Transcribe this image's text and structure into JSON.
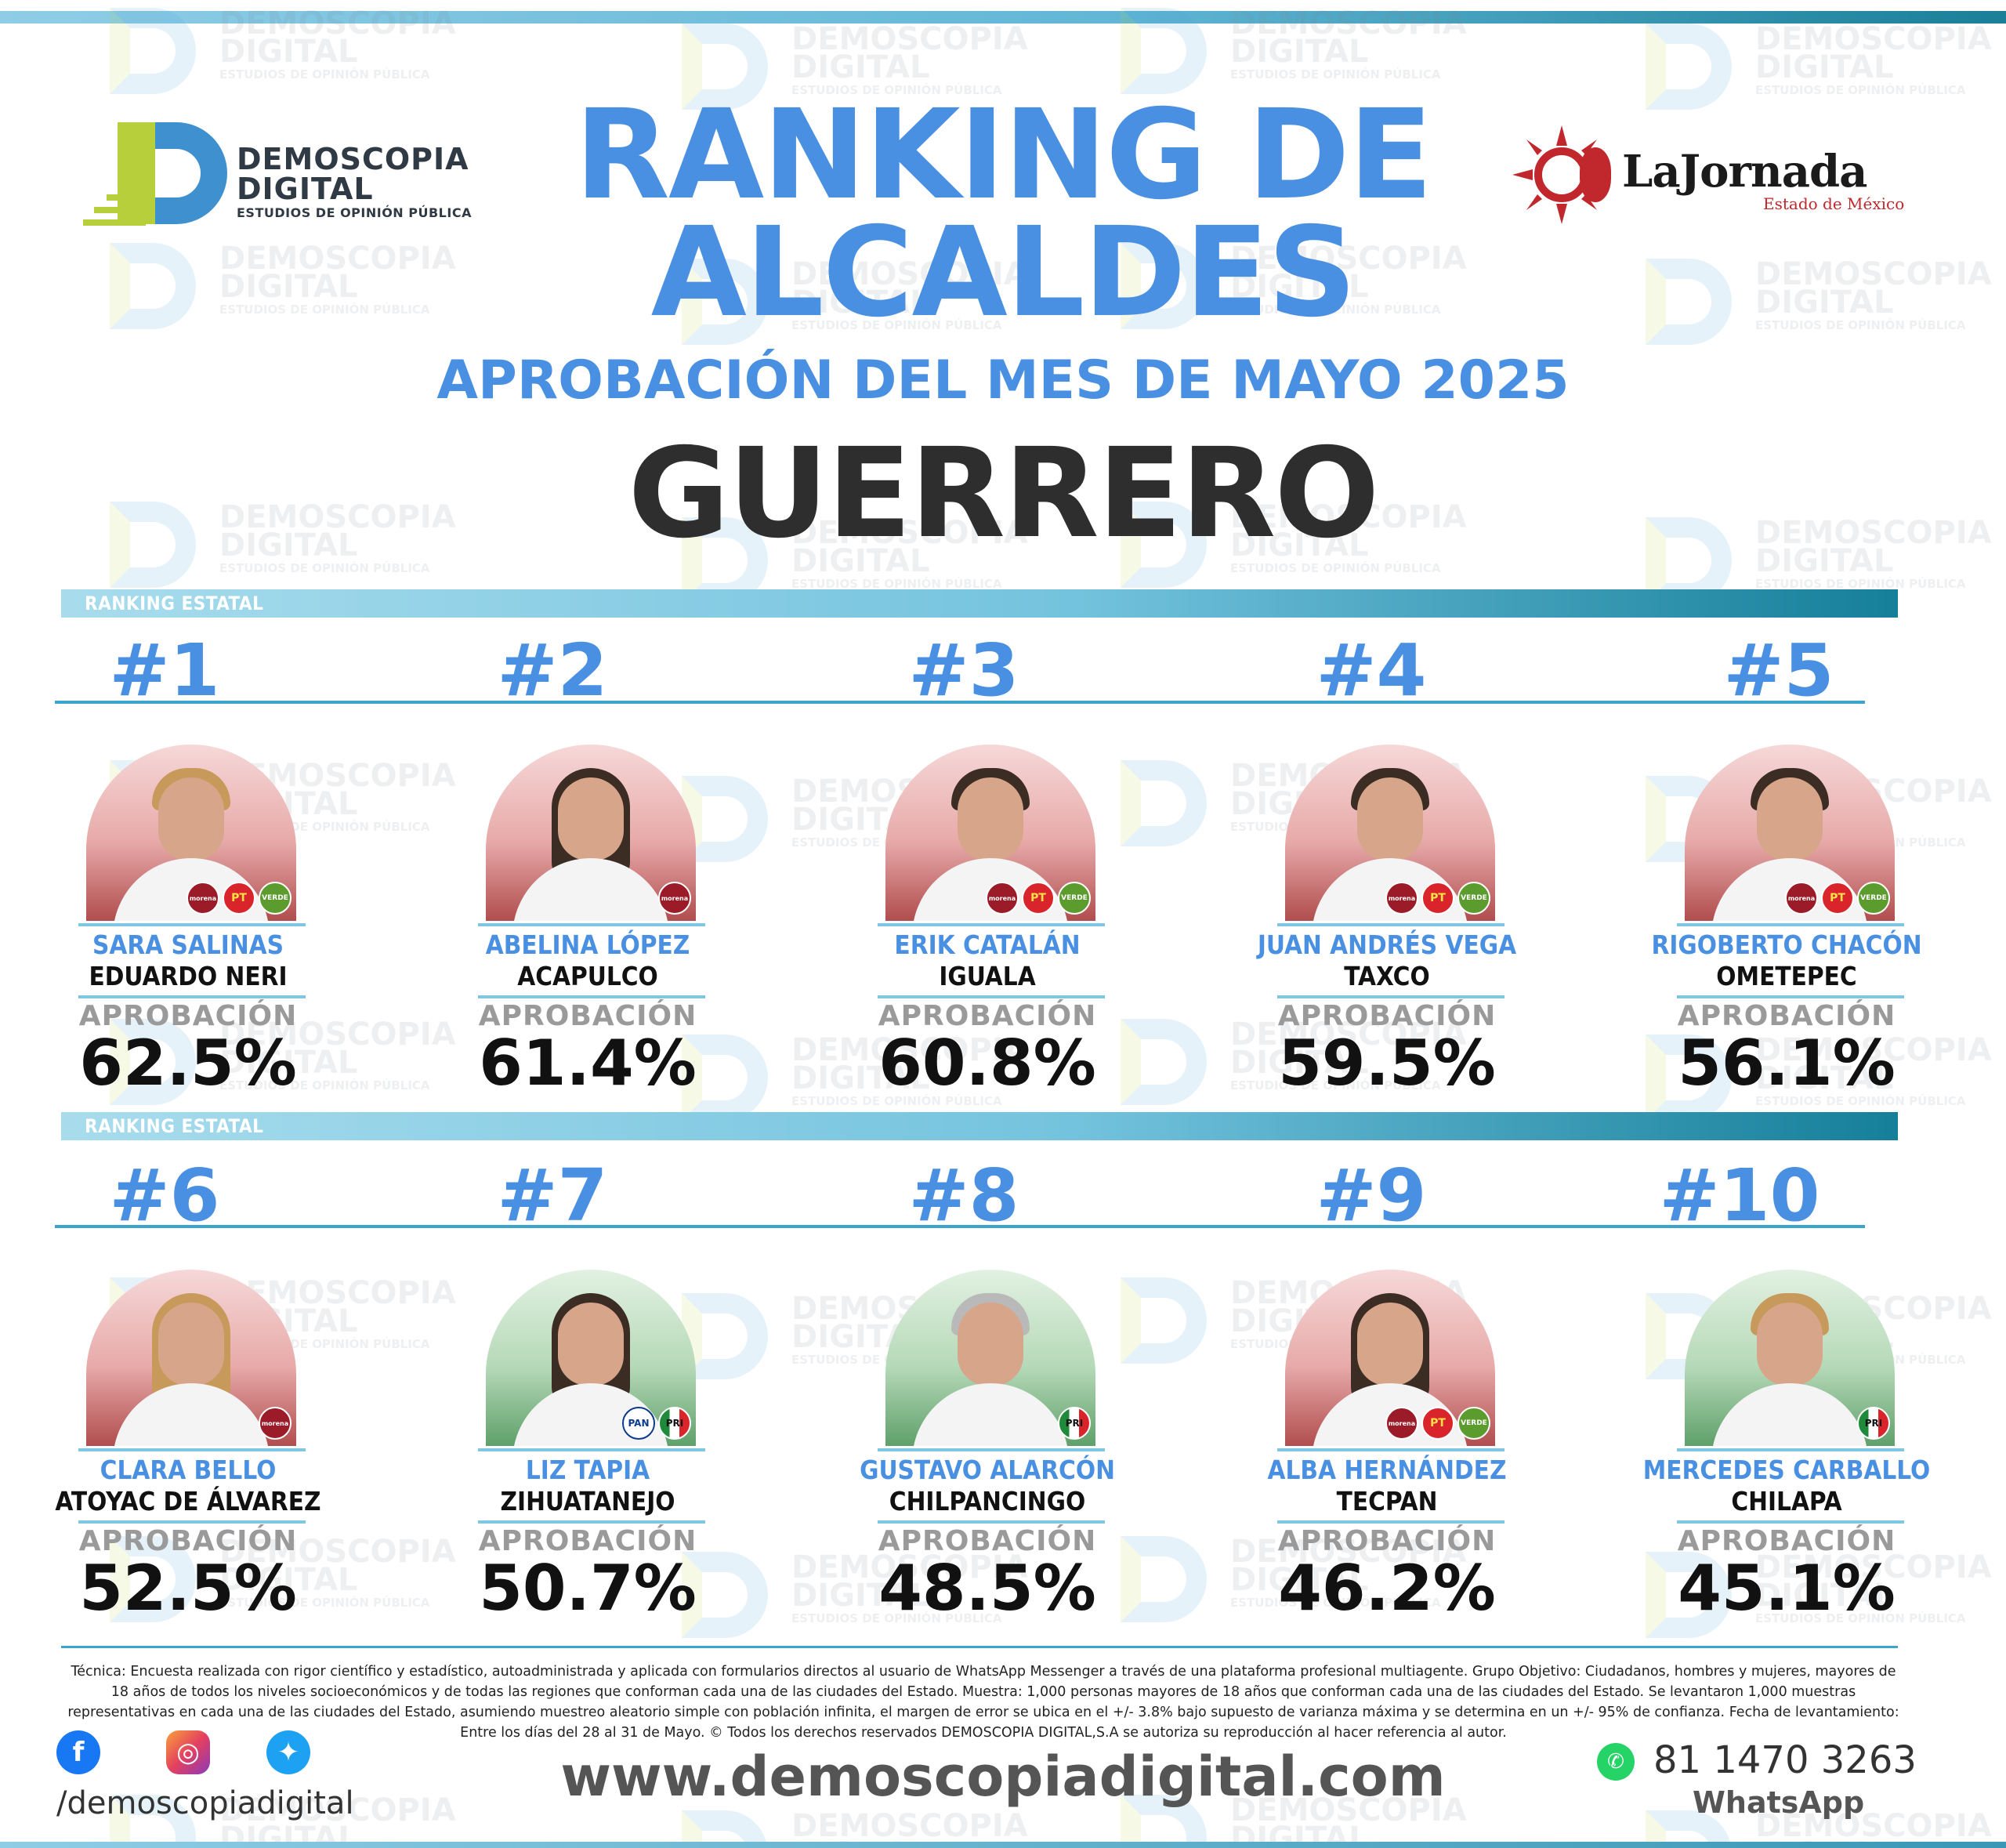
{
  "header": {
    "brand_left": {
      "name_line1": "DEMOSCOPIA",
      "name_line2": "DIGITAL",
      "tagline": "ESTUDIOS DE OPINIÓN PÚBLICA"
    },
    "brand_right": {
      "name": "LaJornada",
      "sub": "Estado de México"
    },
    "title_line1": "RANKING DE",
    "title_line2": "ALCALDES",
    "subtitle": "APROBACIÓN DEL MES DE MAYO 2025",
    "state": "GUERRERO"
  },
  "watermark": {
    "line1": "DEMOSCOPIA",
    "line2": "DIGITAL",
    "tagline": "ESTUDIOS DE OPINIÓN PÚBLICA"
  },
  "sections": [
    {
      "label": "RANKING ESTATAL"
    },
    {
      "label": "RANKING ESTATAL"
    }
  ],
  "approval_label": "APROBACIÓN",
  "mayors": [
    {
      "rank": "#1",
      "name": "SARA SALINAS",
      "city": "EDUARDO NERI",
      "approval": "62.5%",
      "approval_value": 62.5,
      "parties": [
        "morena",
        "PT",
        "VERDE"
      ],
      "bg": "red"
    },
    {
      "rank": "#2",
      "name": "ABELINA LÓPEZ",
      "city": "ACAPULCO",
      "approval": "61.4%",
      "approval_value": 61.4,
      "parties": [
        "morena"
      ],
      "bg": "red"
    },
    {
      "rank": "#3",
      "name": "ERIK CATALÁN",
      "city": "IGUALA",
      "approval": "60.8%",
      "approval_value": 60.8,
      "parties": [
        "morena",
        "PT",
        "VERDE"
      ],
      "bg": "red"
    },
    {
      "rank": "#4",
      "name": "JUAN ANDRÉS VEGA",
      "city": "TAXCO",
      "approval": "59.5%",
      "approval_value": 59.5,
      "parties": [
        "morena",
        "PT",
        "VERDE"
      ],
      "bg": "red"
    },
    {
      "rank": "#5",
      "name": "RIGOBERTO CHACÓN",
      "city": "OMETEPEC",
      "approval": "56.1%",
      "approval_value": 56.1,
      "parties": [
        "morena",
        "PT",
        "VERDE"
      ],
      "bg": "red"
    },
    {
      "rank": "#6",
      "name": "CLARA BELLO",
      "city": "ATOYAC DE ÁLVAREZ",
      "approval": "52.5%",
      "approval_value": 52.5,
      "parties": [
        "morena"
      ],
      "bg": "red"
    },
    {
      "rank": "#7",
      "name": "LIZ TAPIA",
      "city": "ZIHUATANEJO",
      "approval": "50.7%",
      "approval_value": 50.7,
      "parties": [
        "PAN",
        "PRI"
      ],
      "bg": "green"
    },
    {
      "rank": "#8",
      "name": "GUSTAVO ALARCÓN",
      "city": "CHILPANCINGO",
      "approval": "48.5%",
      "approval_value": 48.5,
      "parties": [
        "PRI"
      ],
      "bg": "green"
    },
    {
      "rank": "#9",
      "name": "ALBA HERNÁNDEZ",
      "city": "TECPAN",
      "approval": "46.2%",
      "approval_value": 46.2,
      "parties": [
        "morena",
        "PT",
        "VERDE"
      ],
      "bg": "red"
    },
    {
      "rank": "#10",
      "name": "MERCEDES CARBALLO",
      "city": "CHILAPA",
      "approval": "45.1%",
      "approval_value": 45.1,
      "parties": [
        "PRI"
      ],
      "bg": "green"
    }
  ],
  "footer": {
    "methodology": "Técnica: Encuesta realizada con rigor científico y estadístico, autoadministrada y aplicada con formularios directos al usuario de WhatsApp Messenger a través de una plataforma profesional multiagente. Grupo Objetivo: Ciudadanos, hombres y mujeres, mayores de 18 años de todos los niveles socioeconómicos y de todas las regiones que conforman cada una de las ciudades del Estado. Muestra: 1,000 personas mayores de 18 años que conforman cada una de las ciudades del Estado. Se levantaron 1,000 muestras representativas en cada una de las ciudades del Estado, asumiendo muestreo aleatorio simple con población infinita, el margen de error se ubica en el +/- 3.8% bajo supuesto de varianza máxima y se determina en un +/- 95% de confianza. Fecha de levantamiento: Entre los días del 28 al 31 de Mayo. © Todos los derechos reservados DEMOSCOPIA DIGITAL,S.A se autoriza su reproducción al hacer referencia al autor.",
    "social_handle": "/demoscopiadigital",
    "social_icons": [
      "facebook-icon",
      "instagram-icon",
      "twitter-icon"
    ],
    "website": "www.demoscopiadigital.com",
    "phone": "81 1470 3263",
    "phone_label": "WhatsApp"
  },
  "colors": {
    "accent": "#4a90e2",
    "bar_start": "#a8dced",
    "bar_end": "#157f99",
    "text_dark": "#2e2e2e"
  }
}
